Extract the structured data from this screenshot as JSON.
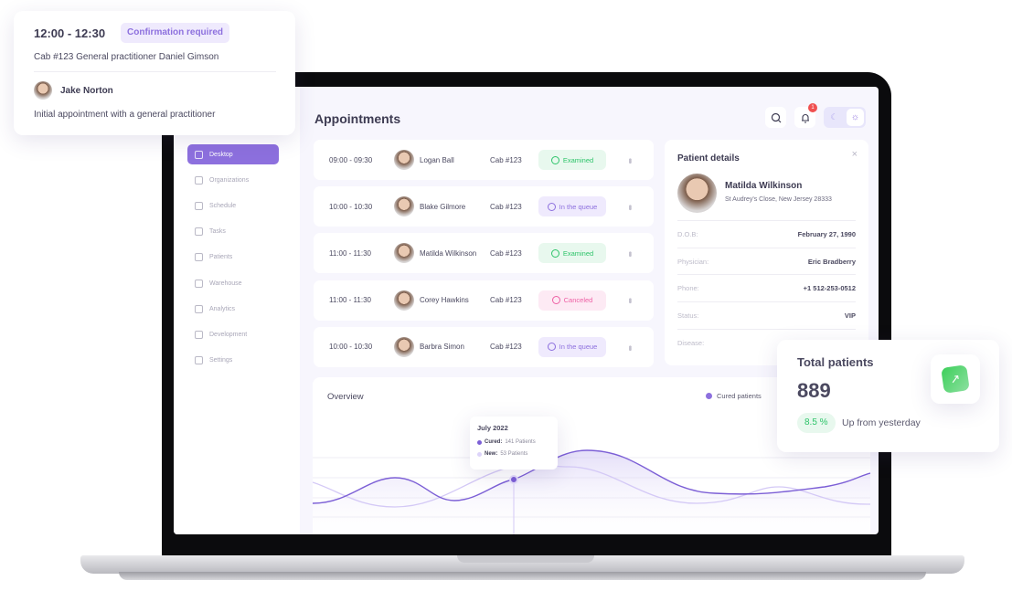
{
  "app": {
    "title": "Appointments"
  },
  "sidebar": {
    "items": [
      {
        "label": "Desktop",
        "icon": "grid-icon",
        "active": true
      },
      {
        "label": "Organizations",
        "icon": "flag-icon"
      },
      {
        "label": "Schedule",
        "icon": "calendar-icon"
      },
      {
        "label": "Tasks",
        "icon": "star-icon"
      },
      {
        "label": "Patients",
        "icon": "user-icon"
      },
      {
        "label": "Warehouse",
        "icon": "box-icon"
      },
      {
        "label": "Analytics",
        "icon": "chart-icon"
      },
      {
        "label": "Development",
        "icon": "bolt-icon"
      },
      {
        "label": "Settings",
        "icon": "gear-icon"
      }
    ]
  },
  "header": {
    "notification_count": "1",
    "theme": "light"
  },
  "appointments": [
    {
      "time": "09:00 - 09:30",
      "name": "Logan Ball",
      "cab": "Cab #123",
      "status": "Examined"
    },
    {
      "time": "10:00 - 10:30",
      "name": "Blake Gilmore",
      "cab": "Cab #123",
      "status": "In the queue"
    },
    {
      "time": "11:00 - 11:30",
      "name": "Matilda Wilkinson",
      "cab": "Cab #123",
      "status": "Examined"
    },
    {
      "time": "11:00 - 11:30",
      "name": "Corey Hawkins",
      "cab": "Cab #123",
      "status": "Canceled"
    },
    {
      "time": "10:00 - 10:30",
      "name": "Barbra Simon",
      "cab": "Cab #123",
      "status": "In the queue"
    }
  ],
  "status_colors": {
    "Examined": {
      "bg": "#e8f8ee",
      "fg": "#2ec46a"
    },
    "In the queue": {
      "bg": "#efeafd",
      "fg": "#8d70de"
    },
    "Canceled": {
      "bg": "#fdeaf4",
      "fg": "#ee5fa4"
    }
  },
  "patient": {
    "heading": "Patient details",
    "name": "Matilda Wilkinson",
    "address": "St Audrey's Close, New Jersey 28333",
    "fields": [
      {
        "k": "D.O.B:",
        "v": "February 27, 1990"
      },
      {
        "k": "Physician:",
        "v": "Eric Bradberry"
      },
      {
        "k": "Phone:",
        "v": "+1 512-253-0512"
      },
      {
        "k": "Status:",
        "v": "VIP"
      },
      {
        "k": "Disease:",
        "v": ""
      }
    ]
  },
  "overview": {
    "title": "Overview",
    "legend": "Cured patients",
    "tooltip": {
      "date": "July 2022",
      "cured_label": "Cured:",
      "cured_value": "141 Patients",
      "new_label": "New:",
      "new_value": "53 Patients"
    }
  },
  "popup": {
    "time": "12:00 - 12:30",
    "badge": "Confirmation required",
    "detail": "Cab #123  General practitioner Daniel Gimson",
    "person": "Jake Norton",
    "note": "Initial appointment with a general practitioner"
  },
  "total": {
    "title": "Total patients",
    "value": "889",
    "change": "8.5 %",
    "change_label": "Up from yesterday"
  },
  "colors": {
    "accent": "#8d70de",
    "green": "#2ec46a"
  }
}
